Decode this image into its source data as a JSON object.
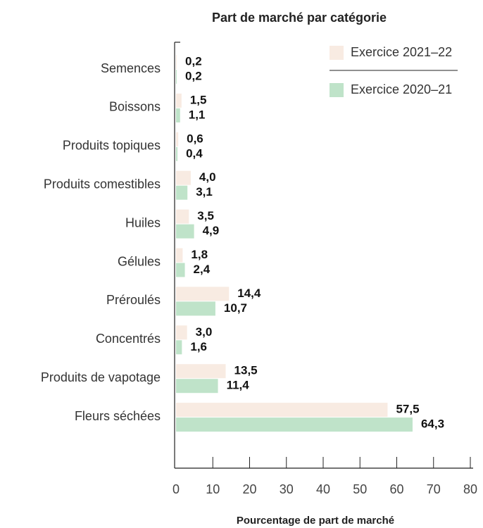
{
  "chart_data": {
    "type": "hbar",
    "title": "Part de marché par catégorie",
    "x_label": "Pourcentage de part de marché",
    "categories": [
      "Semences",
      "Boissons",
      "Produits topiques",
      "Produits comestibles",
      "Huiles",
      "Gélules",
      "Préroulés",
      "Concentrés",
      "Produits de vapotage",
      "Fleurs séchées"
    ],
    "series": [
      {
        "name": "Exercice 2021–22",
        "color": "#f8ebe2",
        "values": [
          0.2,
          1.5,
          0.6,
          4.0,
          3.5,
          1.8,
          14.4,
          3.0,
          13.5,
          57.5
        ],
        "value_labels": [
          "0,2",
          "1,5",
          "0,6",
          "4,0",
          "3,5",
          "1,8",
          "14,4",
          "3,0",
          "13,5",
          "57,5"
        ]
      },
      {
        "name": "Exercice 2020–21",
        "color": "#bfe3c9",
        "values": [
          0.2,
          1.1,
          0.4,
          3.1,
          4.9,
          2.4,
          10.7,
          1.6,
          11.4,
          64.3
        ],
        "value_labels": [
          "0,2",
          "1,1",
          "0,4",
          "3,1",
          "4,9",
          "2,4",
          "10,7",
          "1,6",
          "11,4",
          "64,3"
        ]
      }
    ],
    "xlim": [
      0,
      80
    ],
    "xticks": [
      0,
      10,
      20,
      30,
      40,
      50,
      60,
      70,
      80
    ]
  }
}
